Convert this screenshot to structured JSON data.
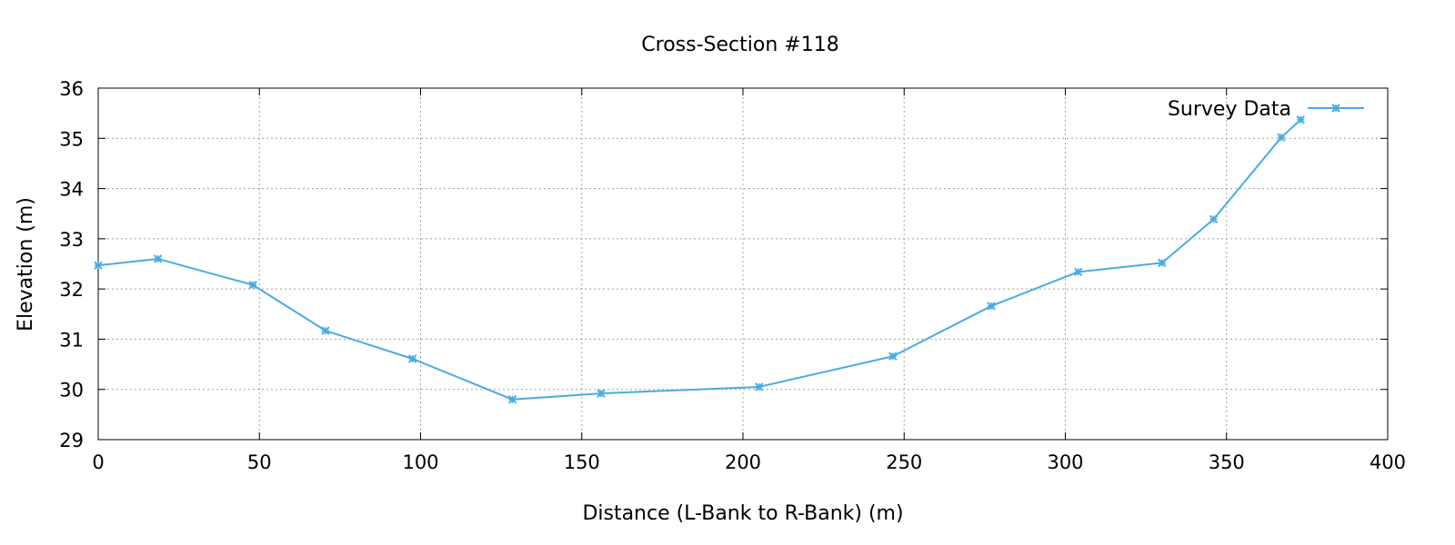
{
  "chart_data": {
    "type": "line",
    "title": "Cross-Section #118",
    "xlabel": "Distance (L-Bank to R-Bank) (m)",
    "ylabel": "Elevation (m)",
    "xlim": [
      0,
      400
    ],
    "ylim": [
      29,
      36
    ],
    "xticks": [
      0,
      50,
      100,
      150,
      200,
      250,
      300,
      350,
      400
    ],
    "yticks": [
      29,
      30,
      31,
      32,
      33,
      34,
      35,
      36
    ],
    "grid": true,
    "legend_position": "top-right",
    "series": [
      {
        "name": "Survey Data",
        "color": "#4aabe0",
        "marker": "x",
        "x": [
          0,
          18.5,
          48,
          70.5,
          97.5,
          128.5,
          156,
          205,
          246.5,
          277,
          304,
          330,
          346,
          367,
          373
        ],
        "y": [
          32.47,
          32.6,
          32.08,
          31.17,
          30.61,
          29.8,
          29.92,
          30.05,
          30.66,
          31.66,
          32.34,
          32.52,
          33.39,
          35.02,
          35.37
        ]
      }
    ]
  }
}
